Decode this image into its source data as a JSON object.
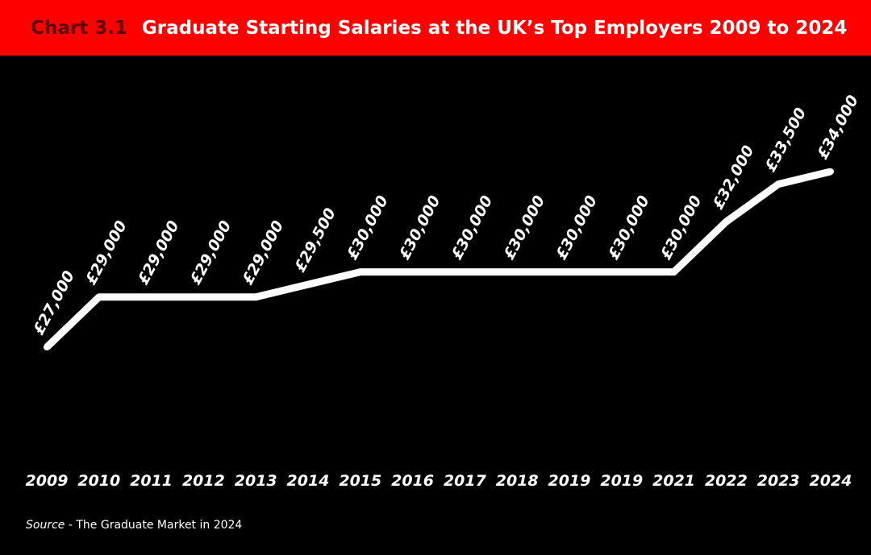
{
  "header": {
    "chart_number": "Chart 3.1",
    "title": "Graduate Starting Salaries at the UK’s Top Employers 2009 to 2024"
  },
  "source": {
    "label": "Source",
    "text": " - The Graduate Market in 2024"
  },
  "colors": {
    "header_bg": "#ff0000",
    "chart_number": "#5a0000",
    "background": "#000000",
    "line": "#ffffff",
    "text": "#ffffff"
  },
  "chart_data": {
    "type": "line",
    "title": "Graduate Starting Salaries at the UK’s Top Employers 2009 to 2024",
    "categories": [
      "2009",
      "2010",
      "2011",
      "2012",
      "2013",
      "2014",
      "2015",
      "2016",
      "2017",
      "2018",
      "2019",
      "2019",
      "2021",
      "2022",
      "2023",
      "2024"
    ],
    "values": [
      27000,
      29000,
      29000,
      29000,
      29000,
      29500,
      30000,
      30000,
      30000,
      30000,
      30000,
      30000,
      30000,
      32000,
      33500,
      34000
    ],
    "labels": [
      "£27,000",
      "£29,000",
      "£29,000",
      "£29,000",
      "£29,000",
      "£29,500",
      "£30,000",
      "£30,000",
      "£30,000",
      "£30,000",
      "£30,000",
      "£30,000",
      "£30,000",
      "£32,000",
      "£33,500",
      "£34,000"
    ],
    "xlabel": "",
    "ylabel": "",
    "grid": false,
    "legend": "none"
  }
}
